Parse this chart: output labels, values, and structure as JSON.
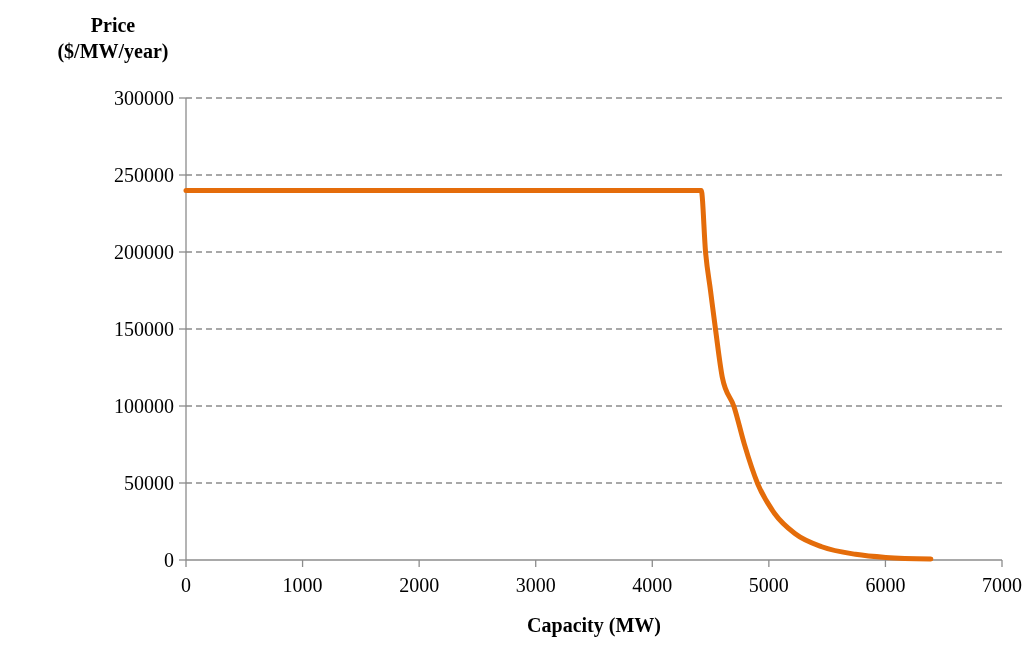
{
  "chart_data": {
    "type": "line",
    "xlabel": "Capacity (MW)",
    "ylabel": "Price\n($/MW/year)",
    "series": [
      {
        "color": "#e46c0a",
        "x": [
          0,
          4420,
          4457,
          4500,
          4543,
          4601,
          4702,
          4789,
          4905,
          5049,
          5223,
          5454,
          5743,
          6003,
          6390
        ],
        "values": [
          240000,
          240000,
          200000,
          174600,
          149400,
          118500,
          99400,
          75400,
          49400,
          30200,
          17200,
          8600,
          3700,
          1700,
          700
        ]
      }
    ],
    "xlim": [
      0,
      7000
    ],
    "xticks": [
      0,
      1000,
      2000,
      3000,
      4000,
      5000,
      6000,
      7000
    ],
    "ylim": [
      0,
      300000
    ],
    "yticks": [
      0,
      50000,
      100000,
      150000,
      200000,
      250000,
      300000
    ],
    "grid": "y",
    "line_style": "solid",
    "marker": "none"
  }
}
